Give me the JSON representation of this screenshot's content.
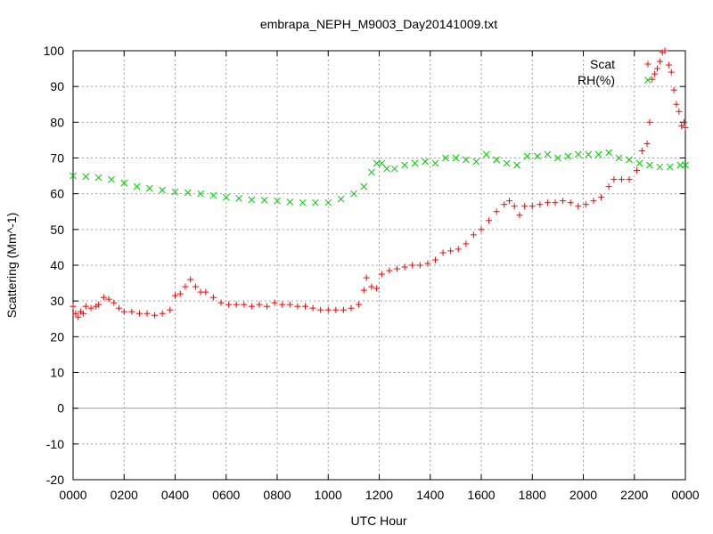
{
  "chart_data": {
    "type": "scatter",
    "title": "embrapa_NEPH_M9003_Day20141009.txt",
    "xlabel": "UTC Hour",
    "ylabel": "Scattering (Mm^-1)",
    "xlim": [
      0,
      24
    ],
    "ylim": [
      -20,
      100
    ],
    "x_ticks": [
      "0000",
      "0200",
      "0400",
      "0600",
      "0800",
      "1000",
      "1200",
      "1400",
      "1600",
      "1800",
      "2000",
      "2200",
      "0000"
    ],
    "y_ticks": [
      "-20",
      "-10",
      "0",
      "10",
      "20",
      "30",
      "40",
      "50",
      "60",
      "70",
      "80",
      "90",
      "100"
    ],
    "grid": true,
    "legend_position": "top-right",
    "series": [
      {
        "name": "Scat",
        "color": "#ff0000",
        "marker": "plus",
        "points": [
          [
            0.0,
            28.5
          ],
          [
            0.1,
            26.5
          ],
          [
            0.2,
            25.5
          ],
          [
            0.3,
            27.0
          ],
          [
            0.4,
            26.5
          ],
          [
            0.5,
            28.5
          ],
          [
            0.7,
            28.0
          ],
          [
            0.9,
            28.5
          ],
          [
            1.0,
            29.0
          ],
          [
            1.2,
            31.0
          ],
          [
            1.4,
            30.5
          ],
          [
            1.6,
            29.5
          ],
          [
            1.8,
            28.0
          ],
          [
            2.0,
            27.0
          ],
          [
            2.3,
            27.0
          ],
          [
            2.6,
            26.5
          ],
          [
            2.9,
            26.5
          ],
          [
            3.2,
            26.0
          ],
          [
            3.5,
            26.5
          ],
          [
            3.8,
            27.5
          ],
          [
            4.0,
            31.5
          ],
          [
            4.2,
            32.0
          ],
          [
            4.4,
            34.0
          ],
          [
            4.6,
            36.0
          ],
          [
            4.8,
            34.0
          ],
          [
            5.0,
            32.5
          ],
          [
            5.2,
            32.5
          ],
          [
            5.5,
            31.0
          ],
          [
            5.8,
            29.5
          ],
          [
            6.1,
            29.0
          ],
          [
            6.4,
            29.0
          ],
          [
            6.7,
            29.0
          ],
          [
            7.0,
            28.5
          ],
          [
            7.3,
            29.0
          ],
          [
            7.6,
            28.5
          ],
          [
            7.9,
            29.5
          ],
          [
            8.2,
            29.0
          ],
          [
            8.5,
            29.0
          ],
          [
            8.8,
            28.5
          ],
          [
            9.1,
            28.5
          ],
          [
            9.4,
            28.0
          ],
          [
            9.7,
            27.5
          ],
          [
            10.0,
            27.5
          ],
          [
            10.3,
            27.5
          ],
          [
            10.6,
            27.5
          ],
          [
            10.9,
            28.0
          ],
          [
            11.2,
            29.0
          ],
          [
            11.4,
            33.0
          ],
          [
            11.5,
            36.5
          ],
          [
            11.7,
            34.0
          ],
          [
            11.9,
            33.5
          ],
          [
            12.1,
            37.5
          ],
          [
            12.4,
            38.5
          ],
          [
            12.7,
            39.0
          ],
          [
            13.0,
            39.5
          ],
          [
            13.3,
            40.0
          ],
          [
            13.6,
            40.0
          ],
          [
            13.9,
            40.5
          ],
          [
            14.2,
            41.5
          ],
          [
            14.5,
            43.5
          ],
          [
            14.8,
            44.0
          ],
          [
            15.1,
            44.5
          ],
          [
            15.4,
            46.0
          ],
          [
            15.7,
            48.5
          ],
          [
            16.0,
            50.0
          ],
          [
            16.3,
            52.5
          ],
          [
            16.6,
            55.0
          ],
          [
            16.9,
            57.0
          ],
          [
            17.1,
            58.0
          ],
          [
            17.3,
            56.5
          ],
          [
            17.5,
            54.0
          ],
          [
            17.7,
            56.5
          ],
          [
            18.0,
            56.5
          ],
          [
            18.3,
            57.0
          ],
          [
            18.6,
            57.5
          ],
          [
            18.9,
            57.5
          ],
          [
            19.2,
            58.0
          ],
          [
            19.5,
            57.5
          ],
          [
            19.8,
            56.5
          ],
          [
            20.1,
            57.0
          ],
          [
            20.4,
            58.0
          ],
          [
            20.7,
            59.0
          ],
          [
            21.0,
            62.0
          ],
          [
            21.2,
            64.0
          ],
          [
            21.5,
            64.0
          ],
          [
            21.8,
            64.0
          ],
          [
            22.1,
            66.5
          ],
          [
            22.3,
            72.0
          ],
          [
            22.5,
            74.0
          ],
          [
            22.6,
            80.0
          ],
          [
            22.7,
            92.0
          ],
          [
            22.8,
            93.5
          ],
          [
            22.9,
            95.0
          ],
          [
            23.0,
            97.0
          ],
          [
            23.1,
            99.5
          ],
          [
            23.2,
            100.0
          ],
          [
            23.35,
            96.0
          ],
          [
            23.45,
            94.0
          ],
          [
            23.55,
            89.0
          ],
          [
            23.65,
            85.0
          ],
          [
            23.75,
            83.0
          ],
          [
            23.85,
            79.0
          ],
          [
            23.95,
            80.0
          ],
          [
            24.0,
            78.5
          ]
        ]
      },
      {
        "name": "RH(%)",
        "color": "#00cc00",
        "marker": "cross",
        "points": [
          [
            0.0,
            65.0
          ],
          [
            0.5,
            64.8
          ],
          [
            1.0,
            64.5
          ],
          [
            1.5,
            64.0
          ],
          [
            2.0,
            63.0
          ],
          [
            2.5,
            62.0
          ],
          [
            3.0,
            61.5
          ],
          [
            3.5,
            61.0
          ],
          [
            4.0,
            60.5
          ],
          [
            4.5,
            60.3
          ],
          [
            5.0,
            60.0
          ],
          [
            5.5,
            59.5
          ],
          [
            6.0,
            59.0
          ],
          [
            6.5,
            58.7
          ],
          [
            7.0,
            58.3
          ],
          [
            7.5,
            58.2
          ],
          [
            8.0,
            58.0
          ],
          [
            8.5,
            57.7
          ],
          [
            9.0,
            57.5
          ],
          [
            9.5,
            57.5
          ],
          [
            10.0,
            57.5
          ],
          [
            10.5,
            58.5
          ],
          [
            11.0,
            60.0
          ],
          [
            11.4,
            62.0
          ],
          [
            11.7,
            66.0
          ],
          [
            11.9,
            68.5
          ],
          [
            12.1,
            68.5
          ],
          [
            12.3,
            67.0
          ],
          [
            12.6,
            67.0
          ],
          [
            13.0,
            68.0
          ],
          [
            13.4,
            68.5
          ],
          [
            13.8,
            69.0
          ],
          [
            14.2,
            68.5
          ],
          [
            14.6,
            70.0
          ],
          [
            15.0,
            70.0
          ],
          [
            15.4,
            69.5
          ],
          [
            15.8,
            69.0
          ],
          [
            16.2,
            71.0
          ],
          [
            16.6,
            69.5
          ],
          [
            17.0,
            68.5
          ],
          [
            17.4,
            68.0
          ],
          [
            17.8,
            70.5
          ],
          [
            18.2,
            70.5
          ],
          [
            18.6,
            71.0
          ],
          [
            19.0,
            70.0
          ],
          [
            19.4,
            70.5
          ],
          [
            19.8,
            71.0
          ],
          [
            20.2,
            71.0
          ],
          [
            20.6,
            71.0
          ],
          [
            21.0,
            71.5
          ],
          [
            21.4,
            70.0
          ],
          [
            21.8,
            69.5
          ],
          [
            22.2,
            68.5
          ],
          [
            22.6,
            68.0
          ],
          [
            23.0,
            67.5
          ],
          [
            23.4,
            67.5
          ],
          [
            23.8,
            68.0
          ],
          [
            24.0,
            68.0
          ]
        ]
      }
    ]
  }
}
